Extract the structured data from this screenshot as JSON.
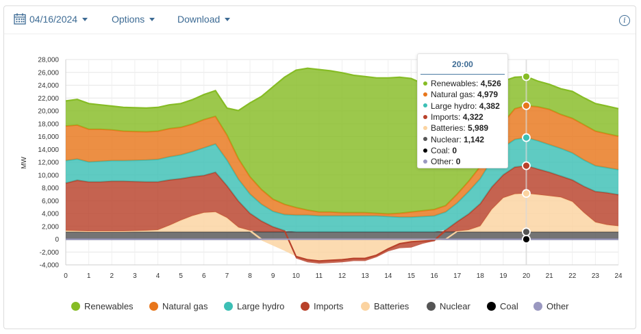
{
  "toolbar": {
    "date": "04/16/2024",
    "options_label": "Options",
    "download_label": "Download",
    "info_glyph": "i",
    "calendar_icon": "calendar-icon"
  },
  "chart_data": {
    "type": "area",
    "stacked": true,
    "title": "",
    "xlabel": "",
    "ylabel": "MW",
    "xlim": [
      0,
      24
    ],
    "ylim": [
      -4000,
      28000
    ],
    "x_ticks": [
      "0",
      "1",
      "2",
      "3",
      "4",
      "5",
      "6",
      "7",
      "8",
      "9",
      "10",
      "11",
      "12",
      "13",
      "14",
      "15",
      "16",
      "17",
      "18",
      "19",
      "20",
      "21",
      "22",
      "23",
      "24"
    ],
    "y_ticks": [
      "-4,000",
      "-2,000",
      "0",
      "2,000",
      "4,000",
      "6,000",
      "8,000",
      "10,000",
      "12,000",
      "14,000",
      "16,000",
      "18,000",
      "20,000",
      "22,000",
      "24,000",
      "26,000",
      "28,000"
    ],
    "x": [
      0,
      0.5,
      1,
      1.5,
      2,
      2.5,
      3,
      3.5,
      4,
      4.5,
      5,
      5.5,
      6,
      6.5,
      7,
      7.5,
      8,
      8.5,
      9,
      9.5,
      10,
      10.5,
      11,
      11.5,
      12,
      12.5,
      13,
      13.5,
      14,
      14.5,
      15,
      15.5,
      16,
      16.5,
      17,
      17.5,
      18,
      18.5,
      19,
      19.5,
      20,
      20.5,
      21,
      21.5,
      22,
      22.5,
      23,
      23.5,
      24
    ],
    "series": [
      {
        "name": "Other",
        "color": "#9a98c0",
        "values": [
          0,
          0,
          0,
          0,
          0,
          0,
          0,
          0,
          0,
          0,
          0,
          0,
          0,
          0,
          0,
          0,
          0,
          0,
          0,
          0,
          0,
          0,
          0,
          0,
          0,
          0,
          0,
          0,
          0,
          0,
          0,
          0,
          0,
          0,
          0,
          0,
          0,
          0,
          0,
          0,
          0,
          0,
          0,
          0,
          0,
          0,
          0,
          0,
          0
        ]
      },
      {
        "name": "Coal",
        "color": "#000000",
        "values": [
          0,
          0,
          0,
          0,
          0,
          0,
          0,
          0,
          0,
          0,
          0,
          0,
          0,
          0,
          0,
          0,
          0,
          0,
          0,
          0,
          0,
          0,
          0,
          0,
          0,
          0,
          0,
          0,
          0,
          0,
          0,
          0,
          0,
          0,
          0,
          0,
          0,
          0,
          0,
          0,
          0,
          0,
          0,
          0,
          0,
          0,
          0,
          0,
          0
        ]
      },
      {
        "name": "Nuclear",
        "color": "#555555",
        "values": [
          1142,
          1142,
          1142,
          1142,
          1142,
          1142,
          1142,
          1142,
          1142,
          1142,
          1142,
          1142,
          1142,
          1142,
          1142,
          1142,
          1142,
          1142,
          1142,
          1142,
          1142,
          1142,
          1142,
          1142,
          1142,
          1142,
          1142,
          1142,
          1142,
          1142,
          1142,
          1142,
          1142,
          1142,
          1142,
          1142,
          1142,
          1142,
          1142,
          1142,
          1142,
          1142,
          1142,
          1142,
          1142,
          1142,
          1142,
          1142,
          1142
        ]
      },
      {
        "name": "Batteries",
        "color": "#fbd3a0",
        "values": [
          200,
          150,
          100,
          100,
          100,
          100,
          150,
          200,
          300,
          1000,
          1800,
          2500,
          3000,
          3100,
          2200,
          700,
          200,
          -200,
          -1000,
          -1800,
          -2700,
          -3200,
          -3400,
          -3300,
          -3200,
          -3000,
          -3000,
          -2500,
          -1500,
          -700,
          -400,
          -300,
          -200,
          -100,
          100,
          300,
          900,
          3500,
          5300,
          5900,
          5989,
          5800,
          5600,
          5400,
          4700,
          3000,
          1500,
          1100,
          900
        ]
      },
      {
        "name": "Imports",
        "color": "#b8412a",
        "values": [
          7400,
          7900,
          7700,
          7700,
          7800,
          7800,
          7700,
          7600,
          7500,
          7100,
          6500,
          6100,
          5800,
          6200,
          5000,
          4100,
          2700,
          1700,
          800,
          200,
          -300,
          -400,
          -400,
          -400,
          -400,
          -400,
          -400,
          -300,
          -400,
          -700,
          -900,
          -400,
          -100,
          300,
          1500,
          2500,
          3500,
          3500,
          3600,
          4200,
          4322,
          4000,
          3700,
          3300,
          3400,
          4100,
          4800,
          5000,
          4900
        ]
      },
      {
        "name": "Large hydro",
        "color": "#3cbfb5",
        "values": [
          3500,
          3300,
          3100,
          3200,
          3200,
          3200,
          3300,
          3400,
          3500,
          3600,
          3700,
          3900,
          4300,
          4400,
          4000,
          3400,
          3000,
          2600,
          2400,
          2500,
          2600,
          2600,
          2500,
          2500,
          2500,
          2500,
          2500,
          2500,
          2400,
          2300,
          2300,
          2400,
          2500,
          2800,
          2900,
          3500,
          3900,
          4200,
          4300,
          4300,
          4382,
          4400,
          4300,
          4300,
          4200,
          4100,
          4000,
          3900,
          3900
        ]
      },
      {
        "name": "Natural gas",
        "color": "#e8761b",
        "values": [
          5400,
          5300,
          5100,
          5000,
          4800,
          4600,
          4500,
          4400,
          4400,
          4400,
          4300,
          4300,
          4400,
          4300,
          3900,
          3200,
          2700,
          2300,
          1900,
          1600,
          1200,
          800,
          600,
          600,
          500,
          500,
          500,
          400,
          400,
          600,
          800,
          900,
          1000,
          1000,
          1400,
          1600,
          1900,
          3000,
          3800,
          4800,
          4979,
          5300,
          5500,
          5300,
          5400,
          5500,
          5400,
          5300,
          5200
        ]
      },
      {
        "name": "Renewables",
        "color": "#86bc25",
        "values": [
          3900,
          4000,
          4000,
          3800,
          3700,
          3700,
          3700,
          3700,
          3700,
          3700,
          3700,
          3800,
          3900,
          4000,
          4200,
          7500,
          11500,
          14500,
          17500,
          19800,
          21400,
          22100,
          22200,
          22000,
          21800,
          21400,
          21200,
          21100,
          21200,
          21200,
          20800,
          19800,
          18500,
          17100,
          15300,
          13100,
          11200,
          8400,
          6500,
          4900,
          4526,
          4000,
          3900,
          4000,
          4200,
          4200,
          4300,
          4300,
          4300
        ]
      }
    ],
    "legend": {
      "position": "bottom",
      "items": [
        "Renewables",
        "Natural gas",
        "Large hydro",
        "Imports",
        "Batteries",
        "Nuclear",
        "Coal",
        "Other"
      ]
    },
    "legend_colors": [
      "#86bc25",
      "#e8761b",
      "#3cbfb5",
      "#b8412a",
      "#fbd3a0",
      "#555555",
      "#000000",
      "#9a98c0"
    ],
    "grid": true,
    "tooltip": {
      "title": "20:00",
      "x": 20,
      "rows": [
        {
          "label": "Renewables: ",
          "value": "4,526",
          "color": "#86bc25"
        },
        {
          "label": "Natural gas: ",
          "value": "4,979",
          "color": "#e8761b"
        },
        {
          "label": "Large hydro: ",
          "value": "4,382",
          "color": "#3cbfb5"
        },
        {
          "label": "Imports: ",
          "value": "4,322",
          "color": "#b8412a"
        },
        {
          "label": "Batteries: ",
          "value": "5,989",
          "color": "#fbd3a0"
        },
        {
          "label": "Nuclear: ",
          "value": "1,142",
          "color": "#555555"
        },
        {
          "label": "Coal: ",
          "value": "0",
          "color": "#000000"
        },
        {
          "label": "Other: ",
          "value": "0",
          "color": "#9a98c0"
        }
      ]
    }
  }
}
